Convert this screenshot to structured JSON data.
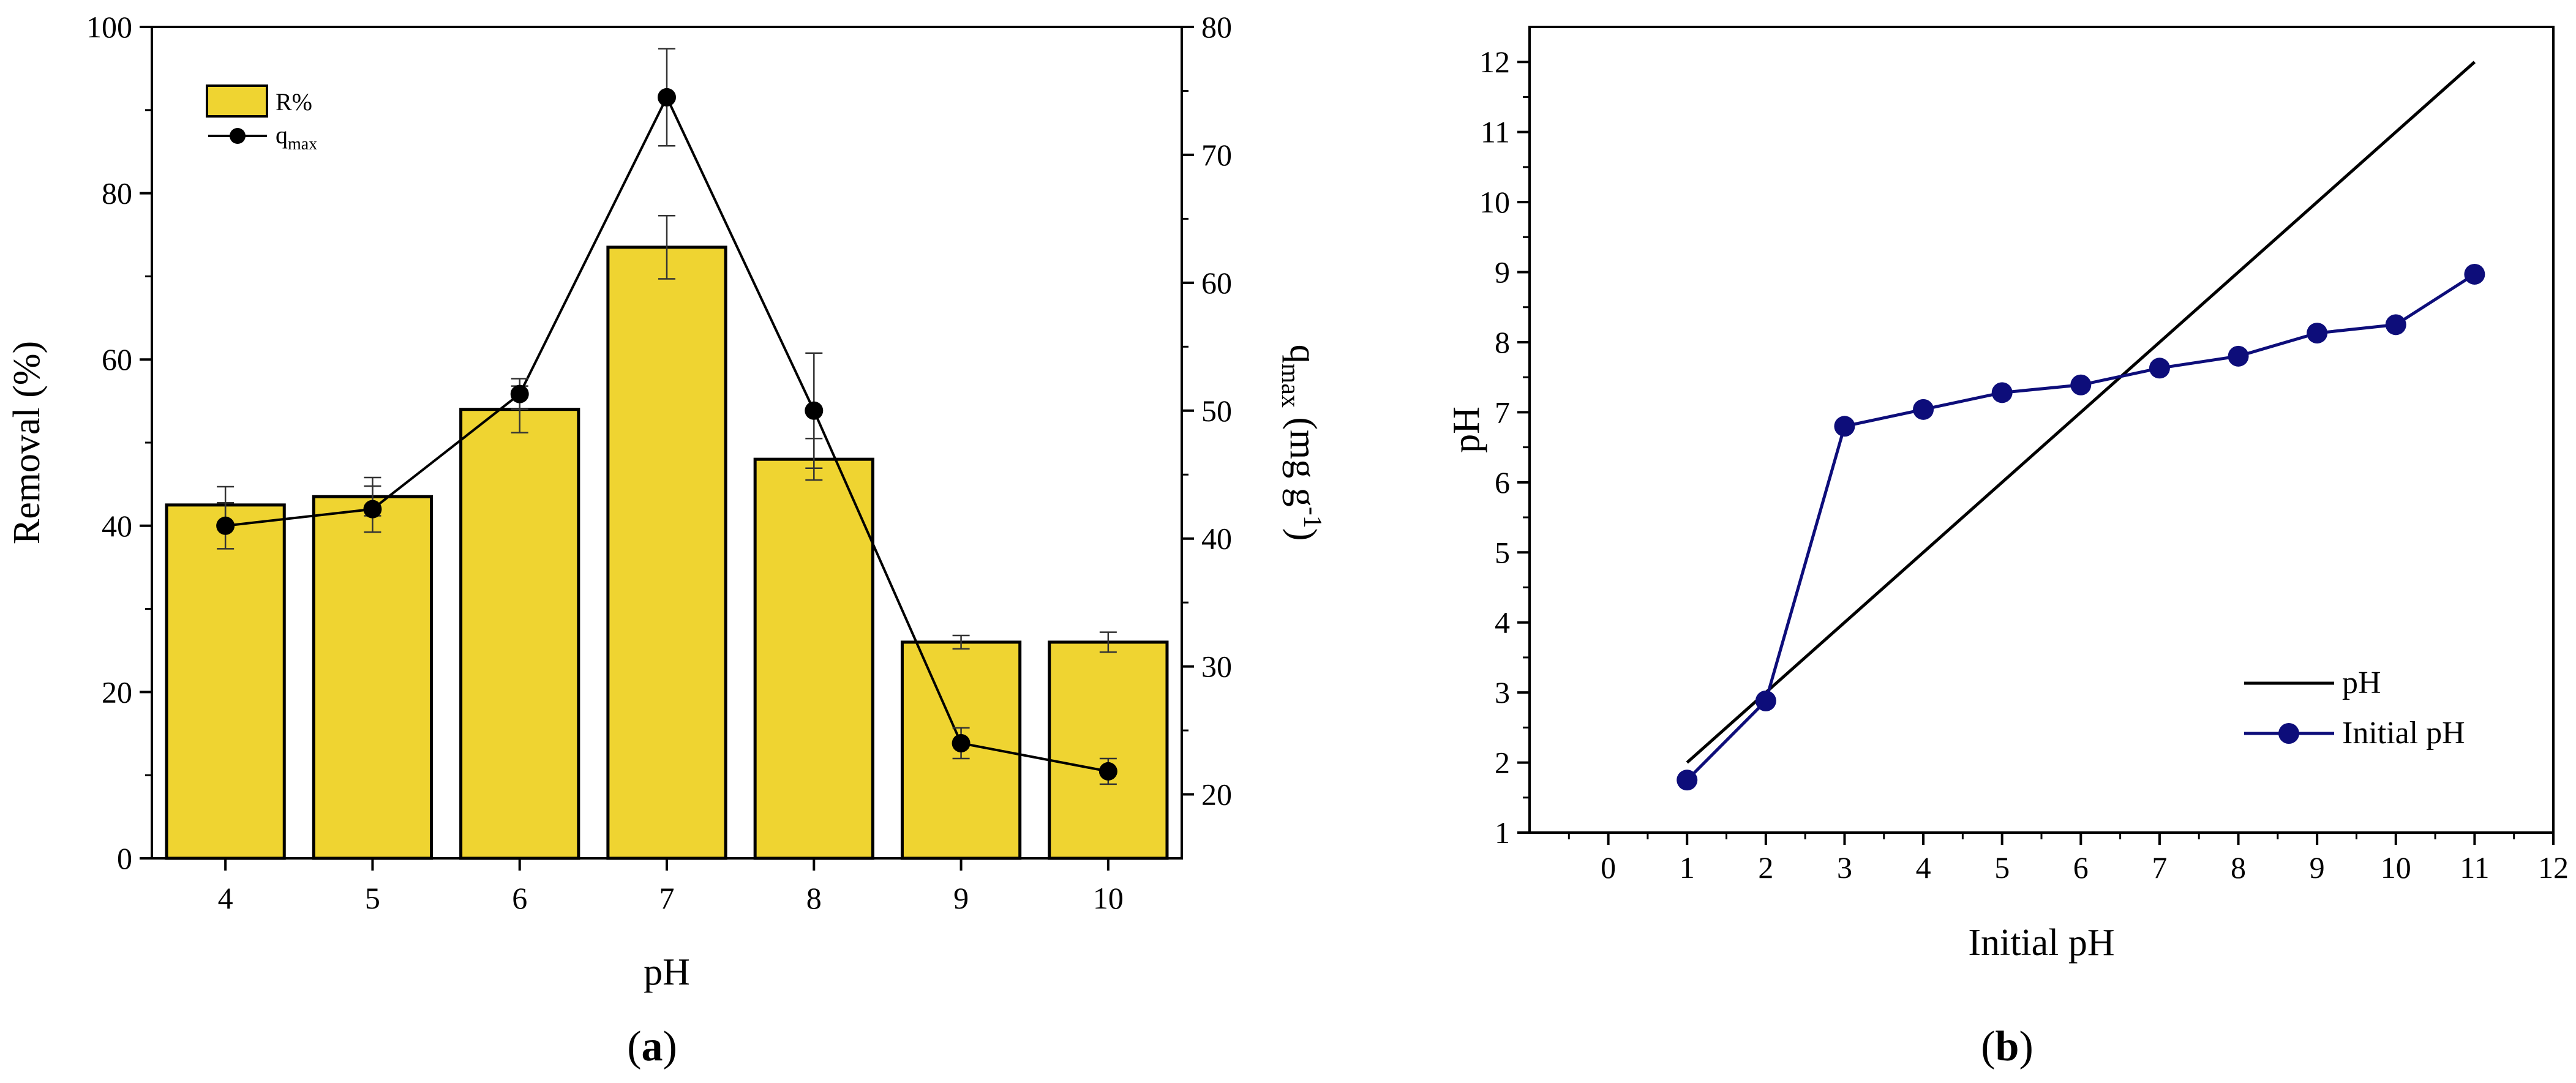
{
  "chart_data": [
    {
      "panel": "(a)",
      "caption": {
        "open": "(",
        "letter": "a",
        "close": ")"
      },
      "type": "bar",
      "categories": [
        "4",
        "5",
        "6",
        "7",
        "8",
        "9",
        "10"
      ],
      "xlabel": "pH",
      "ylabel_left": "Removal (%)",
      "ylabel_right": {
        "base": "q",
        "sub": "max",
        "rest": " (mg g",
        "sup": "-1",
        "close": ")"
      },
      "ylim_left": [
        0,
        100
      ],
      "yticks_left": [
        "0",
        "20",
        "40",
        "60",
        "80",
        "100"
      ],
      "ylim_right": [
        15,
        80
      ],
      "yticks_right": [
        "20",
        "30",
        "40",
        "50",
        "60",
        "70",
        "80"
      ],
      "grid": false,
      "legend_position": "top-left",
      "series": [
        {
          "name": "R%",
          "type": "bar",
          "axis": "left",
          "color": "#EFD431",
          "values": [
            42.5,
            43.5,
            54,
            73.5,
            48,
            26,
            26
          ],
          "errors": [
            2.2,
            2.3,
            2.8,
            3.8,
            2.5,
            0.8,
            1.2
          ]
        },
        {
          "name": {
            "base": "q",
            "sub": "max"
          },
          "type": "line",
          "axis": "right",
          "color": "#000000",
          "values": [
            41,
            42.3,
            51.3,
            74.5,
            50,
            24,
            21.8
          ],
          "errors": [
            1.8,
            1.8,
            1.2,
            3.8,
            4.5,
            1.2,
            1.0
          ]
        }
      ]
    },
    {
      "panel": "(b)",
      "caption": {
        "open": "(",
        "letter": "b",
        "close": ")"
      },
      "type": "line",
      "xlabel": "Initial pH",
      "ylabel": "pH",
      "xlim": [
        -1,
        12
      ],
      "ylim": [
        1,
        12.5
      ],
      "xticks": [
        "0",
        "1",
        "2",
        "3",
        "4",
        "5",
        "6",
        "7",
        "8",
        "9",
        "10",
        "11",
        "12"
      ],
      "yticks": [
        "1",
        "2",
        "3",
        "4",
        "5",
        "6",
        "7",
        "8",
        "9",
        "10",
        "11",
        "12"
      ],
      "grid": false,
      "legend_position": "bottom-right",
      "series": [
        {
          "name": "pH",
          "color": "#000000",
          "x": [
            1,
            11
          ],
          "y": [
            2,
            12
          ]
        },
        {
          "name": "Initial pH",
          "color": "#0D0D7A",
          "x": [
            1,
            2,
            3,
            4,
            5,
            6,
            7,
            8,
            9,
            10,
            11
          ],
          "y": [
            1.75,
            2.88,
            6.8,
            7.04,
            7.28,
            7.39,
            7.63,
            7.8,
            8.13,
            8.25,
            8.97
          ]
        }
      ]
    }
  ]
}
